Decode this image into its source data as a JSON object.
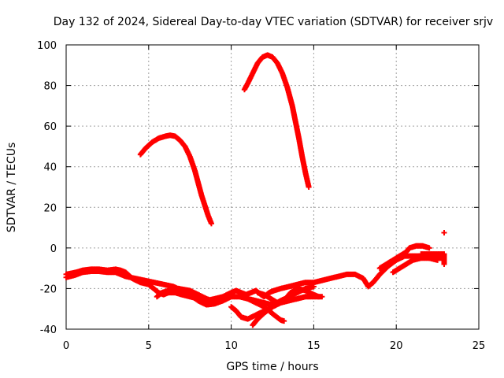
{
  "chart_data": {
    "type": "scatter",
    "title": "Day 132 of 2024, Sidereal Day-to-day VTEC variation (SDTVAR) for receiver srjv",
    "xlabel": "GPS time / hours",
    "ylabel": "SDTVAR / TECUs",
    "xlim": [
      0,
      25
    ],
    "ylim": [
      -40,
      100
    ],
    "xticks": [
      0,
      5,
      10,
      15,
      20,
      25
    ],
    "yticks": [
      -40,
      -20,
      0,
      20,
      40,
      60,
      80,
      100
    ],
    "grid": true,
    "legend": "none",
    "marker": "+",
    "color": "#ff0000",
    "series": [
      {
        "points": [
          [
            0.0,
            -13
          ],
          [
            0.3,
            -12.5
          ],
          [
            0.6,
            -12
          ],
          [
            1.0,
            -11
          ],
          [
            1.5,
            -10.5
          ],
          [
            2.0,
            -10.5
          ],
          [
            2.5,
            -11
          ],
          [
            3.0,
            -10.5
          ],
          [
            3.3,
            -11
          ],
          [
            3.6,
            -12
          ],
          [
            4.0,
            -15
          ],
          [
            4.5,
            -17
          ],
          [
            5.0,
            -18
          ],
          [
            5.3,
            -20
          ],
          [
            5.6,
            -22
          ],
          [
            5.9,
            -23
          ],
          [
            6.2,
            -22
          ],
          [
            6.6,
            -22
          ],
          [
            7.0,
            -23
          ],
          [
            7.5,
            -24
          ],
          [
            8.0,
            -25
          ],
          [
            8.5,
            -26
          ],
          [
            9.0,
            -25
          ],
          [
            9.5,
            -24
          ],
          [
            10.0,
            -22
          ],
          [
            10.3,
            -21
          ],
          [
            10.6,
            -22
          ],
          [
            10.9,
            -23
          ],
          [
            11.2,
            -22
          ],
          [
            11.5,
            -21
          ],
          [
            11.8,
            -23
          ],
          [
            12.0,
            -24
          ],
          [
            12.3,
            -22
          ],
          [
            12.6,
            -21
          ],
          [
            13.0,
            -20
          ],
          [
            13.5,
            -19
          ],
          [
            14.0,
            -18
          ],
          [
            14.5,
            -17
          ],
          [
            15.0,
            -17
          ],
          [
            15.5,
            -16
          ],
          [
            16.0,
            -15
          ],
          [
            16.5,
            -14
          ],
          [
            17.0,
            -13
          ],
          [
            17.5,
            -13
          ],
          [
            18.0,
            -15
          ],
          [
            18.3,
            -19
          ],
          [
            18.6,
            -17
          ],
          [
            19.0,
            -13
          ],
          [
            19.5,
            -9
          ],
          [
            20.0,
            -6
          ],
          [
            20.5,
            -4
          ],
          [
            21.0,
            -4
          ],
          [
            21.5,
            -4
          ],
          [
            22.0,
            -5
          ],
          [
            22.5,
            -5
          ],
          [
            22.8,
            -5
          ]
        ]
      },
      {
        "points": [
          [
            0.0,
            -14.5
          ],
          [
            0.5,
            -13.5
          ],
          [
            1.0,
            -12
          ],
          [
            1.5,
            -11.5
          ],
          [
            2.0,
            -11.5
          ],
          [
            2.5,
            -12
          ],
          [
            3.0,
            -12
          ],
          [
            3.3,
            -13
          ],
          [
            3.6,
            -14
          ],
          [
            6.5,
            -19
          ],
          [
            7.0,
            -21
          ],
          [
            7.5,
            -23
          ],
          [
            8.0,
            -26
          ],
          [
            8.5,
            -28
          ],
          [
            9.0,
            -27.5
          ],
          [
            9.5,
            -26
          ],
          [
            10.0,
            -24
          ],
          [
            10.5,
            -24
          ],
          [
            11.0,
            -25
          ],
          [
            11.5,
            -26
          ],
          [
            12.0,
            -27
          ],
          [
            12.5,
            -28
          ],
          [
            13.0,
            -26
          ],
          [
            13.5,
            -24
          ],
          [
            14.0,
            -22
          ],
          [
            14.5,
            -20
          ],
          [
            15.0,
            -19
          ]
        ]
      },
      {
        "points": [
          [
            5.5,
            -24
          ],
          [
            5.8,
            -22
          ],
          [
            6.2,
            -21
          ],
          [
            6.8,
            -20
          ],
          [
            7.5,
            -21
          ],
          [
            8.0,
            -23
          ],
          [
            8.5,
            -25
          ],
          [
            9.0,
            -26.5
          ]
        ]
      },
      {
        "points": [
          [
            10.0,
            -29
          ],
          [
            10.3,
            -31
          ],
          [
            10.6,
            -34
          ],
          [
            11.0,
            -35
          ],
          [
            11.5,
            -33
          ],
          [
            12.0,
            -31
          ],
          [
            12.5,
            -29
          ],
          [
            13.0,
            -27
          ],
          [
            13.5,
            -26
          ],
          [
            14.0,
            -25
          ],
          [
            14.5,
            -24
          ],
          [
            15.0,
            -24
          ],
          [
            15.5,
            -24
          ]
        ]
      },
      {
        "points": [
          [
            11.3,
            -38
          ],
          [
            11.6,
            -35
          ],
          [
            12.0,
            -32
          ],
          [
            12.5,
            -29
          ],
          [
            13.0,
            -26
          ],
          [
            13.3,
            -25
          ],
          [
            13.6,
            -22
          ],
          [
            14.0,
            -20
          ],
          [
            14.5,
            -21
          ],
          [
            15.0,
            -23
          ],
          [
            15.3,
            -24
          ]
        ]
      },
      {
        "points": [
          [
            11.0,
            -25
          ],
          [
            11.5,
            -27
          ],
          [
            12.0,
            -29
          ],
          [
            12.3,
            -31
          ],
          [
            12.6,
            -33
          ],
          [
            13.0,
            -35.5
          ],
          [
            13.2,
            -36
          ]
        ]
      },
      {
        "points": [
          [
            11.6,
            -22
          ],
          [
            12.0,
            -23
          ],
          [
            12.4,
            -25
          ],
          [
            12.8,
            -27
          ]
        ]
      },
      {
        "points": [
          [
            19.0,
            -10
          ],
          [
            19.4,
            -8
          ],
          [
            19.8,
            -6
          ],
          [
            20.2,
            -4
          ],
          [
            20.6,
            -2
          ],
          [
            20.8,
            0
          ],
          [
            21.2,
            1
          ],
          [
            21.6,
            1
          ],
          [
            22.0,
            0
          ]
        ]
      },
      {
        "points": [
          [
            19.8,
            -12
          ],
          [
            20.2,
            -10
          ],
          [
            20.6,
            -8
          ],
          [
            21.0,
            -6
          ],
          [
            21.5,
            -5
          ],
          [
            22.0,
            -5
          ],
          [
            22.5,
            -6
          ]
        ]
      },
      {
        "points": [
          [
            21.5,
            -3
          ],
          [
            22.0,
            -3
          ],
          [
            22.5,
            -3
          ],
          [
            22.9,
            -3
          ],
          [
            22.9,
            -8
          ]
        ]
      },
      {
        "points": [
          [
            4.5,
            46
          ],
          [
            4.8,
            49
          ],
          [
            5.2,
            52
          ],
          [
            5.6,
            54
          ],
          [
            6.0,
            55
          ],
          [
            6.3,
            55.5
          ],
          [
            6.6,
            55
          ],
          [
            6.9,
            53
          ],
          [
            7.2,
            50
          ],
          [
            7.5,
            45
          ],
          [
            7.8,
            38
          ],
          [
            8.0,
            32
          ],
          [
            8.2,
            26
          ],
          [
            8.4,
            21
          ],
          [
            8.6,
            16
          ],
          [
            8.8,
            12
          ]
        ]
      },
      {
        "points": [
          [
            10.8,
            78
          ],
          [
            11.0,
            81
          ],
          [
            11.3,
            86
          ],
          [
            11.6,
            91
          ],
          [
            11.9,
            94
          ],
          [
            12.2,
            95
          ],
          [
            12.5,
            94
          ],
          [
            12.8,
            91
          ],
          [
            13.1,
            86
          ],
          [
            13.4,
            79
          ],
          [
            13.7,
            70
          ],
          [
            13.9,
            62
          ],
          [
            14.1,
            54
          ],
          [
            14.3,
            45
          ],
          [
            14.5,
            37
          ],
          [
            14.7,
            30
          ]
        ]
      },
      {
        "points": [
          [
            22.9,
            7.5
          ]
        ]
      }
    ]
  }
}
